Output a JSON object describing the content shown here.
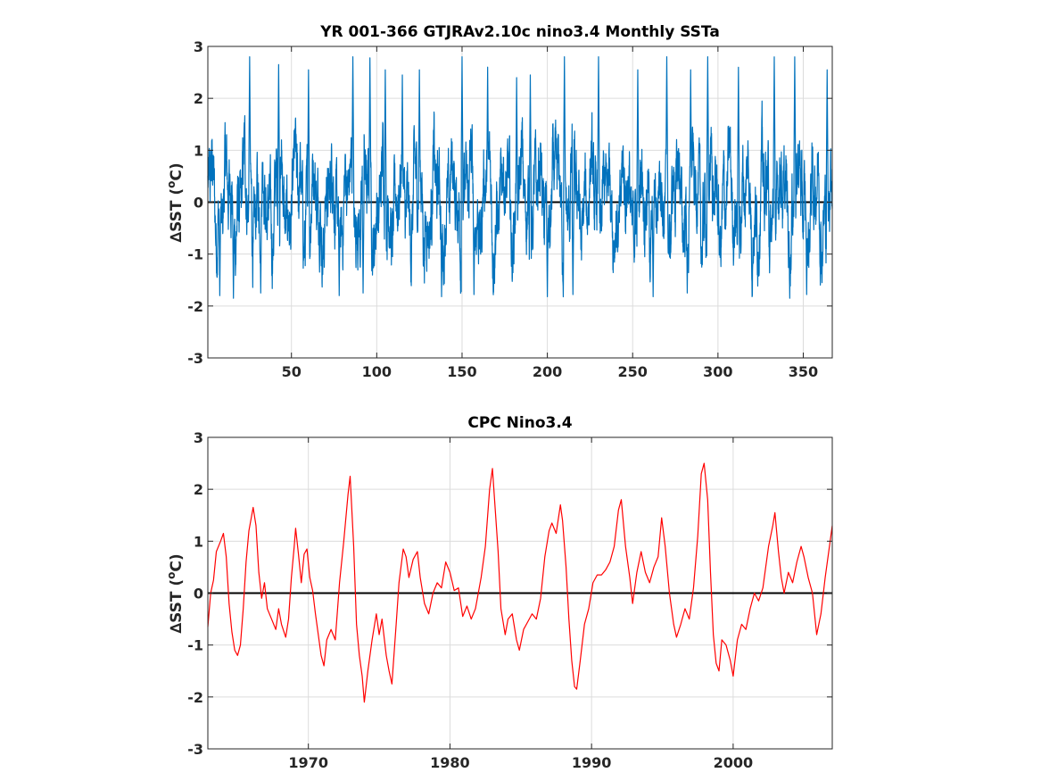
{
  "figure": {
    "background": "#ffffff"
  },
  "chart_data": [
    {
      "type": "line",
      "title": "YR 001-366 GTJRAv2.10c nino3.4 Monthly SSTa",
      "ylabel": "∆SST (°C)",
      "ylabel_main": "∆SST (",
      "ylabel_sup": "o",
      "ylabel_end": "C)",
      "xlim": [
        1,
        367
      ],
      "ylim": [
        -3,
        3
      ],
      "x_ticks": [
        50,
        100,
        150,
        200,
        250,
        300,
        350
      ],
      "y_ticks": [
        -3,
        -2,
        -1,
        0,
        1,
        2,
        3
      ],
      "grid": true,
      "zero_line": true,
      "series": [
        {
          "color": "#0072bd",
          "x_start": 1,
          "x_step": 0.0833333,
          "peaks": [
            {
              "x": 25.5,
              "y": 2.8
            },
            {
              "x": 42.5,
              "y": 2.65
            },
            {
              "x": 60,
              "y": 2.55
            },
            {
              "x": 86,
              "y": 2.8
            },
            {
              "x": 96,
              "y": 2.78
            },
            {
              "x": 105,
              "y": 2.55
            },
            {
              "x": 115,
              "y": 2.45
            },
            {
              "x": 125,
              "y": 2.55
            },
            {
              "x": 150,
              "y": 2.8
            },
            {
              "x": 165,
              "y": 2.6
            },
            {
              "x": 182,
              "y": 2.4
            },
            {
              "x": 190,
              "y": 2.45
            },
            {
              "x": 210,
              "y": 2.8
            },
            {
              "x": 230,
              "y": 2.8
            },
            {
              "x": 253,
              "y": 2.55
            },
            {
              "x": 270,
              "y": 2.8
            },
            {
              "x": 284,
              "y": 2.55
            },
            {
              "x": 294,
              "y": 2.8
            },
            {
              "x": 312,
              "y": 2.6
            },
            {
              "x": 333,
              "y": 2.8
            },
            {
              "x": 345,
              "y": 2.8
            },
            {
              "x": 364,
              "y": 2.55
            }
          ],
          "troughs": [
            {
              "x": 8,
              "y": -1.8
            },
            {
              "x": 16,
              "y": -1.85
            },
            {
              "x": 32,
              "y": -1.75
            },
            {
              "x": 78,
              "y": -1.8
            },
            {
              "x": 92,
              "y": -1.75
            },
            {
              "x": 138,
              "y": -1.82
            },
            {
              "x": 157,
              "y": -1.78
            },
            {
              "x": 200,
              "y": -1.82
            },
            {
              "x": 215,
              "y": -1.78
            },
            {
              "x": 262,
              "y": -1.82
            },
            {
              "x": 282,
              "y": -1.75
            },
            {
              "x": 320,
              "y": -1.82
            },
            {
              "x": 352,
              "y": -1.78
            },
            {
              "x": 361,
              "y": -1.55
            }
          ]
        }
      ]
    },
    {
      "type": "line",
      "title": "CPC Nino3.4",
      "ylabel": "∆SST (°C)",
      "ylabel_main": "∆SST (",
      "ylabel_sup": "o",
      "ylabel_end": "C)",
      "xlim": [
        1962.9,
        2007
      ],
      "ylim": [
        -3,
        3
      ],
      "x_ticks": [
        1970,
        1980,
        1990,
        2000
      ],
      "y_ticks": [
        -3,
        -2,
        -1,
        0,
        1,
        2,
        3
      ],
      "grid": true,
      "zero_line": true,
      "series": [
        {
          "color": "#ff0000",
          "points": [
            [
              1962.9,
              -0.65
            ],
            [
              1963.1,
              0.0
            ],
            [
              1963.3,
              0.25
            ],
            [
              1963.5,
              0.8
            ],
            [
              1963.8,
              1.0
            ],
            [
              1964.0,
              1.15
            ],
            [
              1964.2,
              0.7
            ],
            [
              1964.4,
              -0.2
            ],
            [
              1964.6,
              -0.75
            ],
            [
              1964.8,
              -1.1
            ],
            [
              1965.0,
              -1.2
            ],
            [
              1965.2,
              -1.0
            ],
            [
              1965.4,
              -0.3
            ],
            [
              1965.6,
              0.6
            ],
            [
              1965.8,
              1.2
            ],
            [
              1966.1,
              1.65
            ],
            [
              1966.3,
              1.3
            ],
            [
              1966.5,
              0.4
            ],
            [
              1966.7,
              -0.1
            ],
            [
              1966.9,
              0.2
            ],
            [
              1967.1,
              -0.3
            ],
            [
              1967.4,
              -0.5
            ],
            [
              1967.7,
              -0.7
            ],
            [
              1967.9,
              -0.3
            ],
            [
              1968.1,
              -0.6
            ],
            [
              1968.4,
              -0.85
            ],
            [
              1968.6,
              -0.5
            ],
            [
              1968.8,
              0.3
            ],
            [
              1969.0,
              0.9
            ],
            [
              1969.1,
              1.25
            ],
            [
              1969.3,
              0.75
            ],
            [
              1969.5,
              0.2
            ],
            [
              1969.7,
              0.75
            ],
            [
              1969.9,
              0.85
            ],
            [
              1970.1,
              0.3
            ],
            [
              1970.3,
              0.05
            ],
            [
              1970.5,
              -0.4
            ],
            [
              1970.7,
              -0.8
            ],
            [
              1970.9,
              -1.2
            ],
            [
              1971.1,
              -1.4
            ],
            [
              1971.3,
              -0.9
            ],
            [
              1971.6,
              -0.7
            ],
            [
              1971.9,
              -0.9
            ],
            [
              1972.2,
              0.2
            ],
            [
              1972.5,
              1.0
            ],
            [
              1972.8,
              1.9
            ],
            [
              1972.95,
              2.25
            ],
            [
              1973.2,
              0.9
            ],
            [
              1973.4,
              -0.6
            ],
            [
              1973.6,
              -1.2
            ],
            [
              1973.8,
              -1.6
            ],
            [
              1973.95,
              -2.1
            ],
            [
              1974.2,
              -1.5
            ],
            [
              1974.5,
              -0.9
            ],
            [
              1974.8,
              -0.4
            ],
            [
              1975.0,
              -0.8
            ],
            [
              1975.2,
              -0.5
            ],
            [
              1975.5,
              -1.2
            ],
            [
              1975.7,
              -1.5
            ],
            [
              1975.9,
              -1.75
            ],
            [
              1976.2,
              -0.6
            ],
            [
              1976.4,
              0.2
            ],
            [
              1976.7,
              0.85
            ],
            [
              1976.9,
              0.7
            ],
            [
              1977.1,
              0.3
            ],
            [
              1977.4,
              0.65
            ],
            [
              1977.7,
              0.8
            ],
            [
              1977.9,
              0.3
            ],
            [
              1978.2,
              -0.2
            ],
            [
              1978.5,
              -0.4
            ],
            [
              1978.8,
              0.0
            ],
            [
              1979.1,
              0.2
            ],
            [
              1979.4,
              0.1
            ],
            [
              1979.7,
              0.6
            ],
            [
              1980.0,
              0.4
            ],
            [
              1980.3,
              0.05
            ],
            [
              1980.6,
              0.1
            ],
            [
              1980.9,
              -0.45
            ],
            [
              1981.2,
              -0.25
            ],
            [
              1981.5,
              -0.5
            ],
            [
              1981.8,
              -0.3
            ],
            [
              1982.2,
              0.3
            ],
            [
              1982.5,
              0.9
            ],
            [
              1982.8,
              2.0
            ],
            [
              1983.0,
              2.4
            ],
            [
              1983.2,
              1.6
            ],
            [
              1983.4,
              0.8
            ],
            [
              1983.6,
              -0.3
            ],
            [
              1983.9,
              -0.8
            ],
            [
              1984.1,
              -0.5
            ],
            [
              1984.4,
              -0.4
            ],
            [
              1984.7,
              -0.9
            ],
            [
              1984.9,
              -1.1
            ],
            [
              1985.2,
              -0.7
            ],
            [
              1985.5,
              -0.55
            ],
            [
              1985.8,
              -0.4
            ],
            [
              1986.1,
              -0.5
            ],
            [
              1986.4,
              -0.1
            ],
            [
              1986.7,
              0.7
            ],
            [
              1987.0,
              1.2
            ],
            [
              1987.2,
              1.35
            ],
            [
              1987.5,
              1.15
            ],
            [
              1987.8,
              1.7
            ],
            [
              1987.95,
              1.4
            ],
            [
              1988.2,
              0.5
            ],
            [
              1988.4,
              -0.5
            ],
            [
              1988.6,
              -1.3
            ],
            [
              1988.8,
              -1.8
            ],
            [
              1988.95,
              -1.85
            ],
            [
              1989.2,
              -1.3
            ],
            [
              1989.5,
              -0.6
            ],
            [
              1989.8,
              -0.3
            ],
            [
              1990.1,
              0.2
            ],
            [
              1990.4,
              0.35
            ],
            [
              1990.7,
              0.35
            ],
            [
              1991.0,
              0.45
            ],
            [
              1991.3,
              0.6
            ],
            [
              1991.6,
              0.9
            ],
            [
              1991.9,
              1.6
            ],
            [
              1992.1,
              1.8
            ],
            [
              1992.4,
              0.9
            ],
            [
              1992.7,
              0.3
            ],
            [
              1992.9,
              -0.2
            ],
            [
              1993.2,
              0.4
            ],
            [
              1993.5,
              0.8
            ],
            [
              1993.8,
              0.4
            ],
            [
              1994.1,
              0.2
            ],
            [
              1994.4,
              0.5
            ],
            [
              1994.7,
              0.7
            ],
            [
              1994.95,
              1.45
            ],
            [
              1995.2,
              0.9
            ],
            [
              1995.5,
              0.0
            ],
            [
              1995.8,
              -0.6
            ],
            [
              1996.0,
              -0.85
            ],
            [
              1996.3,
              -0.6
            ],
            [
              1996.6,
              -0.3
            ],
            [
              1996.9,
              -0.5
            ],
            [
              1997.2,
              0.1
            ],
            [
              1997.5,
              1.1
            ],
            [
              1997.75,
              2.3
            ],
            [
              1997.95,
              2.5
            ],
            [
              1998.2,
              1.8
            ],
            [
              1998.4,
              0.4
            ],
            [
              1998.6,
              -0.8
            ],
            [
              1998.8,
              -1.35
            ],
            [
              1999.0,
              -1.5
            ],
            [
              1999.2,
              -0.9
            ],
            [
              1999.5,
              -1.0
            ],
            [
              1999.8,
              -1.3
            ],
            [
              2000.0,
              -1.6
            ],
            [
              2000.3,
              -0.9
            ],
            [
              2000.6,
              -0.6
            ],
            [
              2000.9,
              -0.7
            ],
            [
              2001.2,
              -0.3
            ],
            [
              2001.5,
              0.0
            ],
            [
              2001.8,
              -0.15
            ],
            [
              2002.1,
              0.1
            ],
            [
              2002.5,
              0.9
            ],
            [
              2002.8,
              1.3
            ],
            [
              2002.95,
              1.55
            ],
            [
              2003.2,
              0.8
            ],
            [
              2003.4,
              0.3
            ],
            [
              2003.6,
              0.0
            ],
            [
              2003.9,
              0.4
            ],
            [
              2004.2,
              0.2
            ],
            [
              2004.5,
              0.6
            ],
            [
              2004.8,
              0.9
            ],
            [
              2005.0,
              0.7
            ],
            [
              2005.3,
              0.3
            ],
            [
              2005.6,
              0.0
            ],
            [
              2005.9,
              -0.8
            ],
            [
              2006.2,
              -0.4
            ],
            [
              2006.5,
              0.3
            ],
            [
              2006.8,
              0.9
            ],
            [
              2007.0,
              1.3
            ]
          ]
        }
      ]
    }
  ]
}
